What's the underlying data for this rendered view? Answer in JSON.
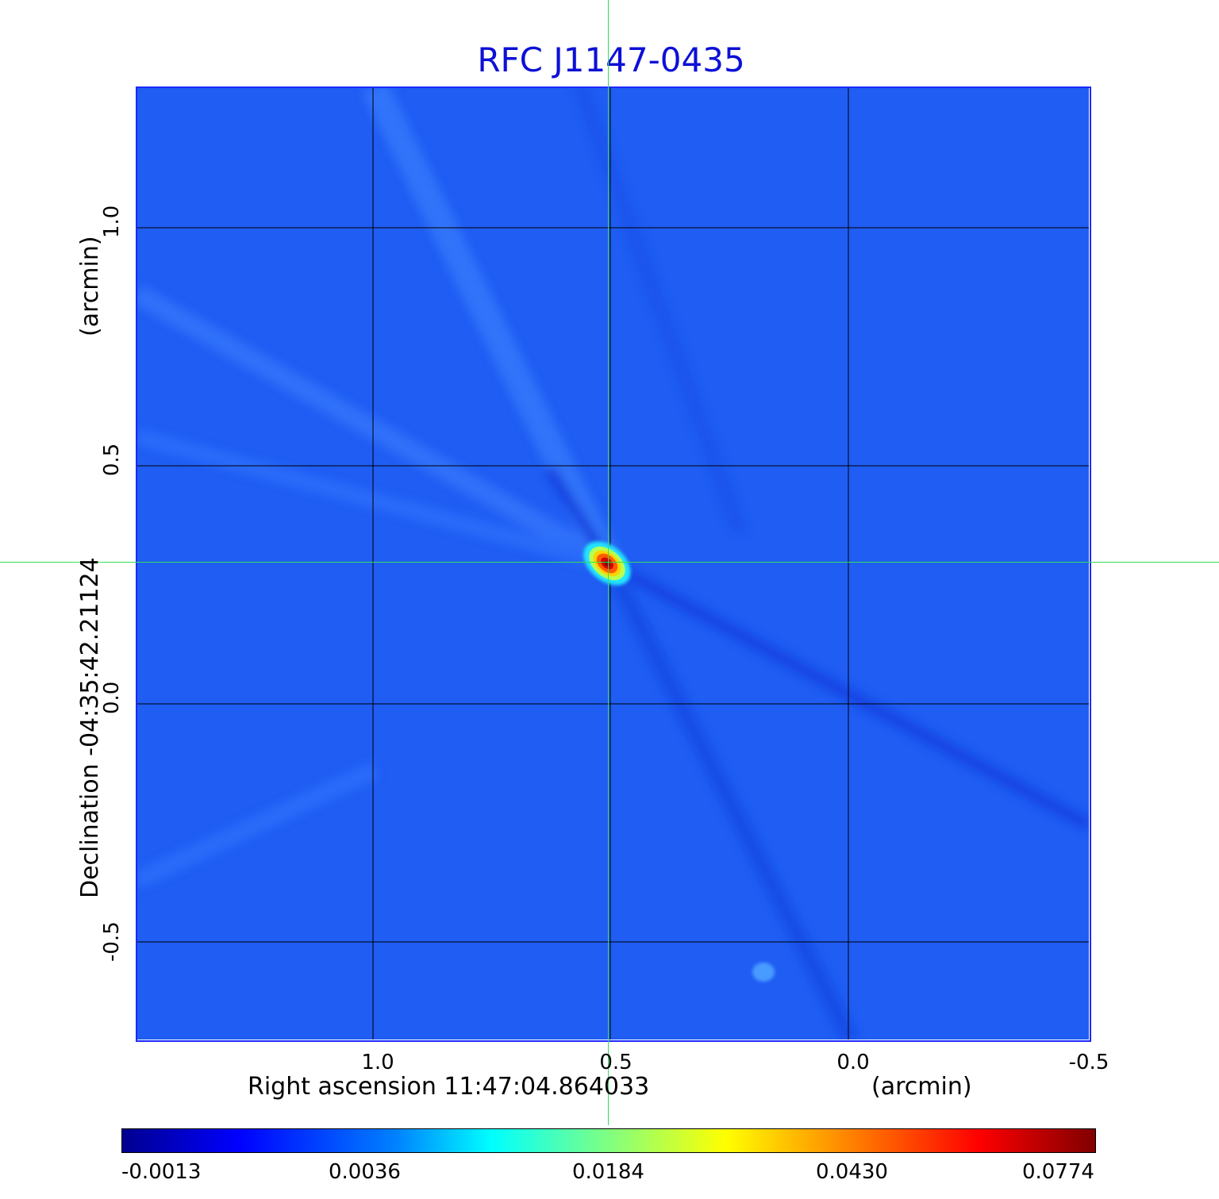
{
  "chart_data": {
    "type": "heatmap",
    "title": "RFC J1147-0435",
    "xlabel": "Right ascension  11:47:04.864033",
    "xunit": "(arcmin)",
    "ylabel": "Declination  -04:35:42.21124",
    "yunit": "(arcmin)",
    "xticks": [
      "1.0",
      "0.5",
      "0.0",
      "-0.5"
    ],
    "yticks": [
      "1.0",
      "0.5",
      "0.0",
      "-0.5"
    ],
    "colorbar_ticks": [
      "-0.0013",
      "0.0036",
      "0.0184",
      "0.0430",
      "0.0774"
    ],
    "colormap": "jet",
    "grid": true,
    "crosshair": true,
    "source_peak_value": 0.0774
  },
  "colors": {
    "title": "#0d10d6",
    "background_field": "#1f5df3",
    "crosshair": "#31e05a",
    "grid": "#000000"
  }
}
